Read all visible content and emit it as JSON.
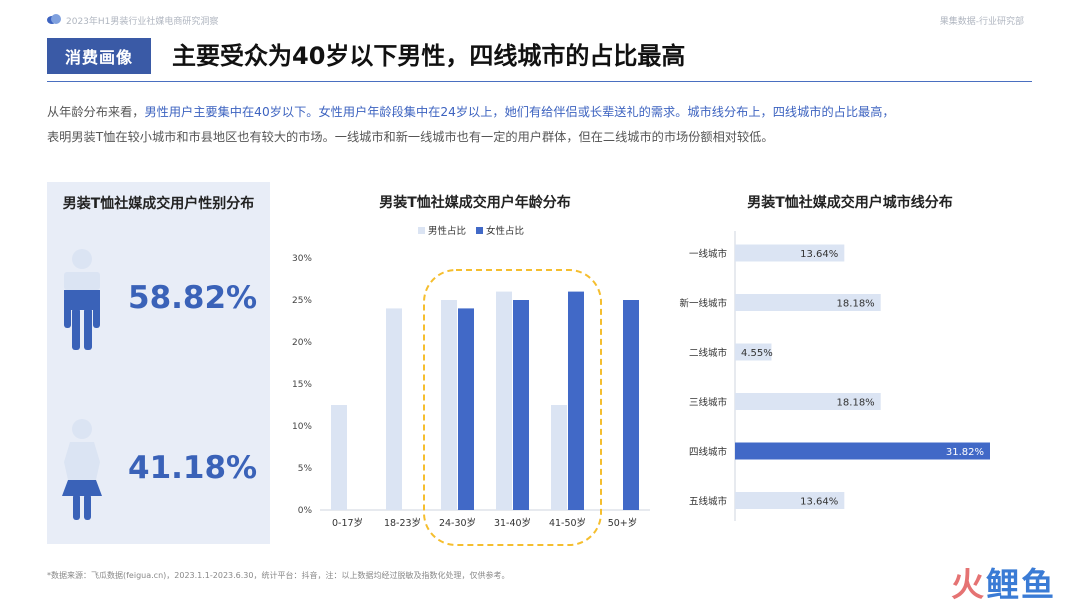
{
  "header": {
    "report_title": "2023年H1男装行业社媒电商研究洞察",
    "org": "果集数据-行业研究部"
  },
  "section_tag": "消费画像",
  "headline": "主要受众为40岁以下男性，四线城市的占比最高",
  "description": {
    "p1": "从年龄分布来看，",
    "p1_hl": "男性用户主要集中在40岁以下。女性用户年龄段集中在24岁以上，她们有给伴侣或长辈送礼的需求。城市线分布上，四线城市的占比最高，",
    "p2": "表明男装T恤在较小城市和市县地区也有较大的市场。一线城市和新一线城市也有一定的用户群体，但在二线城市的市场份额相对较低。"
  },
  "gender_panel": {
    "title": "男装T恤社媒成交用户性别分布",
    "male_pct": "58.82%",
    "female_pct": "41.18%",
    "male_value": 58.82,
    "female_value": 41.18
  },
  "chart_data": [
    {
      "type": "bar",
      "title": "男装T恤社媒成交用户年龄分布",
      "categories": [
        "0-17岁",
        "18-23岁",
        "24-30岁",
        "31-40岁",
        "41-50岁",
        "50+岁"
      ],
      "series": [
        {
          "name": "男性占比",
          "values": [
            12.5,
            24.0,
            25.0,
            26.0,
            12.5,
            0
          ],
          "color": "#dbe4f3"
        },
        {
          "name": "女性占比",
          "values": [
            0,
            0,
            24.0,
            25.0,
            26.0,
            25.0
          ],
          "color": "#4169c7"
        }
      ],
      "ylim": [
        0,
        30
      ],
      "yticks": [
        0,
        5,
        10,
        15,
        20,
        25,
        30
      ],
      "ytick_labels": [
        "0%",
        "5%",
        "10%",
        "15%",
        "20%",
        "25%",
        "30%"
      ],
      "legend": "top-center",
      "highlight_categories": [
        "24-30岁",
        "31-40岁",
        "41-50岁"
      ]
    },
    {
      "type": "bar",
      "orientation": "horizontal",
      "title": "男装T恤社媒成交用户城市线分布",
      "categories": [
        "一线城市",
        "新一线城市",
        "二线城市",
        "三线城市",
        "四线城市",
        "五线城市"
      ],
      "values": [
        13.64,
        18.18,
        4.55,
        18.18,
        31.82,
        13.64
      ],
      "value_labels": [
        "13.64%",
        "18.18%",
        "4.55%",
        "18.18%",
        "31.82%",
        "13.64%"
      ],
      "highlight": "四线城市",
      "colors": {
        "normal": "#dbe4f3",
        "highlight": "#4169c7"
      }
    }
  ],
  "footnote": "*数据来源：飞瓜数据(feigua.cn)，2023.1.1-2023.6.30，统计平台：抖音，注：以上数据均经过脱敏及指数化处理，仅供参考。",
  "watermark": {
    "part1": "火",
    "part2": "鲤鱼"
  }
}
